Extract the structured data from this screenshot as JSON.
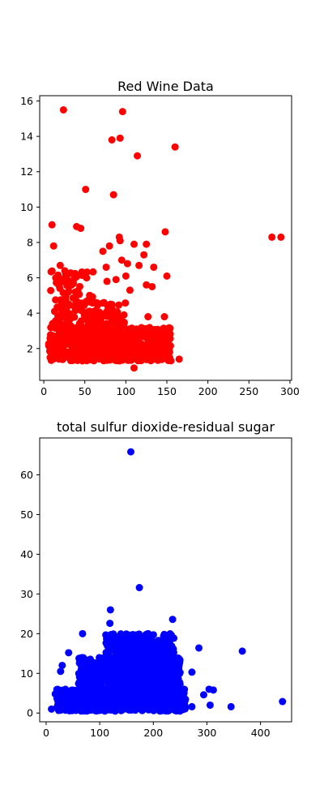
{
  "chart_data": [
    {
      "type": "scatter",
      "title": "Red Wine Data",
      "xlabel": "",
      "ylabel": "",
      "xlim": [
        -5,
        302
      ],
      "ylim": [
        0.2,
        16.3
      ],
      "xticks": [
        0,
        50,
        100,
        150,
        200,
        250,
        300
      ],
      "yticks": [
        2,
        4,
        6,
        8,
        10,
        12,
        14,
        16
      ],
      "grid": false,
      "color": "#ff0000",
      "outliers": [
        {
          "x": 278,
          "y": 8.3
        },
        {
          "x": 289,
          "y": 8.3
        },
        {
          "x": 24,
          "y": 15.5
        },
        {
          "x": 96,
          "y": 15.4
        },
        {
          "x": 83,
          "y": 13.8
        },
        {
          "x": 93,
          "y": 13.9
        },
        {
          "x": 160,
          "y": 13.4
        },
        {
          "x": 114,
          "y": 12.9
        },
        {
          "x": 51,
          "y": 11.0
        },
        {
          "x": 85,
          "y": 10.7
        },
        {
          "x": 10,
          "y": 9.0
        },
        {
          "x": 40,
          "y": 8.9
        },
        {
          "x": 45,
          "y": 8.8
        },
        {
          "x": 92,
          "y": 8.3
        },
        {
          "x": 93,
          "y": 8.1
        },
        {
          "x": 148,
          "y": 8.6
        },
        {
          "x": 12,
          "y": 7.8
        },
        {
          "x": 80,
          "y": 7.8
        },
        {
          "x": 110,
          "y": 7.9
        },
        {
          "x": 125,
          "y": 7.9
        },
        {
          "x": 72,
          "y": 7.5
        },
        {
          "x": 122,
          "y": 7.3
        },
        {
          "x": 95,
          "y": 7.0
        },
        {
          "x": 102,
          "y": 6.8
        },
        {
          "x": 116,
          "y": 6.7
        },
        {
          "x": 134,
          "y": 6.6
        },
        {
          "x": 76,
          "y": 6.6
        },
        {
          "x": 20,
          "y": 6.7
        },
        {
          "x": 150,
          "y": 6.1
        },
        {
          "x": 100,
          "y": 6.1
        },
        {
          "x": 88,
          "y": 5.9
        },
        {
          "x": 125,
          "y": 5.6
        },
        {
          "x": 132,
          "y": 5.5
        },
        {
          "x": 105,
          "y": 5.3
        },
        {
          "x": 77,
          "y": 5.8
        },
        {
          "x": 147,
          "y": 3.8
        },
        {
          "x": 127,
          "y": 3.8
        },
        {
          "x": 165,
          "y": 1.4
        },
        {
          "x": 110,
          "y": 0.9
        }
      ],
      "clusters": [
        {
          "x_range": [
            6,
            155
          ],
          "y_range": [
            1.3,
            3.2
          ],
          "count": 620
        },
        {
          "x_range": [
            8,
            100
          ],
          "y_range": [
            3.0,
            4.6
          ],
          "count": 140
        },
        {
          "x_range": [
            8,
            60
          ],
          "y_range": [
            4.4,
            6.4
          ],
          "count": 60
        }
      ]
    },
    {
      "type": "scatter",
      "title": "total sulfur dioxide-residual sugar",
      "xlabel": "",
      "ylabel": "",
      "xlim": [
        -12,
        458
      ],
      "ylim": [
        -2.2,
        69.3
      ],
      "xticks": [
        0,
        100,
        200,
        300,
        400
      ],
      "yticks": [
        0,
        10,
        20,
        30,
        40,
        50,
        60
      ],
      "grid": false,
      "color": "#0000ff",
      "outliers": [
        {
          "x": 158,
          "y": 65.8
        },
        {
          "x": 174,
          "y": 31.6
        },
        {
          "x": 120,
          "y": 26.0
        },
        {
          "x": 119,
          "y": 22.6
        },
        {
          "x": 236,
          "y": 23.6
        },
        {
          "x": 68,
          "y": 20.0
        },
        {
          "x": 285,
          "y": 16.4
        },
        {
          "x": 366,
          "y": 15.6
        },
        {
          "x": 42,
          "y": 15.2
        },
        {
          "x": 30,
          "y": 12.0
        },
        {
          "x": 27,
          "y": 10.5
        },
        {
          "x": 272,
          "y": 10.3
        },
        {
          "x": 304,
          "y": 6.0
        },
        {
          "x": 312,
          "y": 5.8
        },
        {
          "x": 294,
          "y": 4.6
        },
        {
          "x": 441,
          "y": 2.9
        },
        {
          "x": 345,
          "y": 1.6
        },
        {
          "x": 306,
          "y": 2.0
        },
        {
          "x": 272,
          "y": 1.6
        },
        {
          "x": 10,
          "y": 1.0
        },
        {
          "x": 17,
          "y": 4.8
        },
        {
          "x": 22,
          "y": 3.0
        }
      ],
      "clusters": [
        {
          "x_range": [
            20,
            260
          ],
          "y_range": [
            0.5,
            6
          ],
          "count": 900
        },
        {
          "x_range": [
            60,
            250
          ],
          "y_range": [
            5,
            14
          ],
          "count": 900
        },
        {
          "x_range": [
            110,
            240
          ],
          "y_range": [
            12,
            20
          ],
          "count": 300
        }
      ]
    }
  ]
}
